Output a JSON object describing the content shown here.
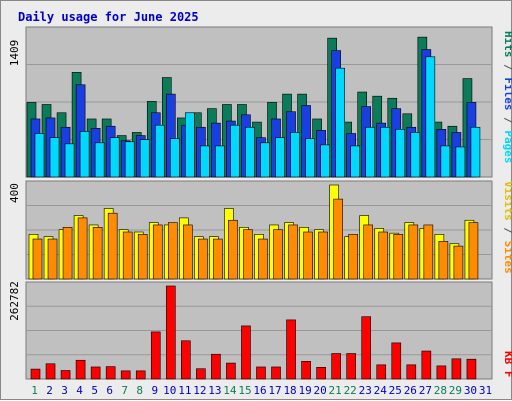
{
  "title": "Daily usage for June 2025",
  "colors": {
    "title": "#0000cc",
    "panel_bg": "#c0c0c0",
    "hits": "#0a7c5a",
    "files": "#1a3fe0",
    "pages": "#00d8ff",
    "visits": "#ffff00",
    "sites": "#ff8c00",
    "kbytes": "#ff0000",
    "weekend_day": "#0a7c5a",
    "weekday_day": "#0000cc"
  },
  "legend": {
    "pages": "Pages",
    "files": "Files",
    "hits": "Hits",
    "sites": "Sites",
    "visits": "Visits",
    "kbytes": "KB F",
    "sep": " / "
  },
  "chart_data": {
    "type": "bar",
    "title": "Daily usage for June 2025",
    "categories": [
      "1",
      "2",
      "3",
      "4",
      "5",
      "6",
      "7",
      "8",
      "9",
      "10",
      "11",
      "12",
      "13",
      "14",
      "15",
      "16",
      "17",
      "18",
      "19",
      "20",
      "21",
      "22",
      "23",
      "24",
      "25",
      "26",
      "27",
      "28",
      "29",
      "30",
      "31"
    ],
    "weekend_days": [
      "1",
      "7",
      "8",
      "14",
      "15",
      "21",
      "22",
      "28",
      "29"
    ],
    "panels": [
      {
        "name": "requests",
        "ymax_label": "1409",
        "ylim": [
          0,
          1409
        ],
        "series": [
          {
            "name": "Hits",
            "values": [
              720,
              700,
              620,
              1010,
              560,
              560,
              400,
              430,
              730,
              960,
              570,
              620,
              660,
              700,
              700,
              530,
              720,
              800,
              800,
              560,
              1340,
              530,
              820,
              780,
              760,
              610,
              1350,
              530,
              490,
              950,
              null
            ]
          },
          {
            "name": "Files",
            "values": [
              560,
              570,
              480,
              890,
              470,
              490,
              350,
              400,
              620,
              800,
              500,
              480,
              520,
              540,
              600,
              380,
              560,
              630,
              690,
              450,
              1220,
              420,
              680,
              520,
              660,
              480,
              1230,
              460,
              430,
              720,
              null
            ]
          },
          {
            "name": "Pages",
            "values": [
              420,
              380,
              320,
              440,
              330,
              380,
              340,
              360,
              500,
              370,
              620,
              300,
              300,
              500,
              480,
              330,
              380,
              430,
              370,
              310,
              1050,
              300,
              480,
              480,
              460,
              430,
              1160,
              300,
              290,
              480,
              null
            ]
          }
        ]
      },
      {
        "name": "visitors",
        "ymax_label": "400",
        "ylim": [
          0,
          400
        ],
        "series": [
          {
            "name": "Visits",
            "values": [
              190,
              180,
              210,
              270,
              230,
              300,
              210,
              200,
              240,
              230,
              260,
              180,
              180,
              300,
              220,
              190,
              230,
              240,
              220,
              210,
              400,
              180,
              270,
              215,
              195,
              240,
              215,
              190,
              150,
              250,
              null
            ]
          },
          {
            "name": "Sites",
            "values": [
              170,
              170,
              220,
              260,
              220,
              280,
              200,
              190,
              230,
              240,
              230,
              170,
              170,
              250,
              210,
              170,
              210,
              230,
              200,
              200,
              340,
              190,
              230,
              200,
              190,
              230,
              230,
              160,
              140,
              240,
              null
            ]
          }
        ]
      },
      {
        "name": "volume",
        "ymax_label": "262782",
        "ylim": [
          0,
          262782
        ],
        "series": [
          {
            "name": "KBytes",
            "values": [
              28000,
              43000,
              24000,
              53000,
              34000,
              35000,
              23000,
              23000,
              133000,
              262782,
              108000,
              29000,
              70000,
              45000,
              150000,
              34000,
              34000,
              167000,
              50000,
              33000,
              72000,
              72000,
              176000,
              40000,
              102000,
              40000,
              79000,
              37000,
              57000,
              56000,
              null
            ]
          }
        ]
      }
    ]
  }
}
